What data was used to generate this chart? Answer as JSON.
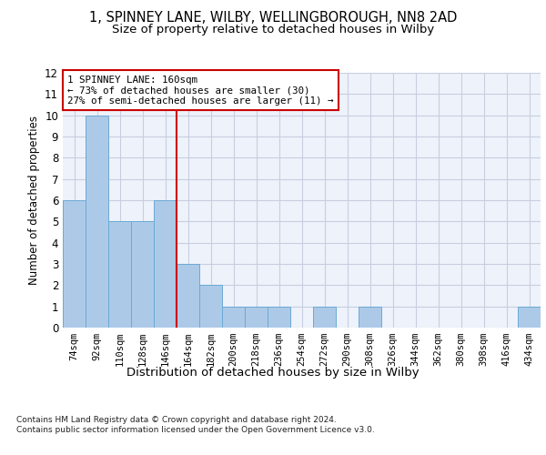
{
  "title_line1": "1, SPINNEY LANE, WILBY, WELLINGBOROUGH, NN8 2AD",
  "title_line2": "Size of property relative to detached houses in Wilby",
  "xlabel": "Distribution of detached houses by size in Wilby",
  "ylabel": "Number of detached properties",
  "categories": [
    "74sqm",
    "92sqm",
    "110sqm",
    "128sqm",
    "146sqm",
    "164sqm",
    "182sqm",
    "200sqm",
    "218sqm",
    "236sqm",
    "254sqm",
    "272sqm",
    "290sqm",
    "308sqm",
    "326sqm",
    "344sqm",
    "362sqm",
    "380sqm",
    "398sqm",
    "416sqm",
    "434sqm"
  ],
  "values": [
    6,
    10,
    5,
    5,
    6,
    3,
    2,
    1,
    1,
    1,
    0,
    1,
    0,
    1,
    0,
    0,
    0,
    0,
    0,
    0,
    1
  ],
  "bar_color": "#adc9e8",
  "bar_edge_color": "#6aaad4",
  "vline_x": 4.5,
  "annotation_text": "1 SPINNEY LANE: 160sqm\n← 73% of detached houses are smaller (30)\n27% of semi-detached houses are larger (11) →",
  "annotation_box_color": "#ffffff",
  "annotation_box_edge": "#cc0000",
  "ylim": [
    0,
    12
  ],
  "yticks": [
    0,
    1,
    2,
    3,
    4,
    5,
    6,
    7,
    8,
    9,
    10,
    11,
    12
  ],
  "background_color": "#eef2fb",
  "grid_color": "#c8cede",
  "footer": "Contains HM Land Registry data © Crown copyright and database right 2024.\nContains public sector information licensed under the Open Government Licence v3.0.",
  "vline_color": "#cc0000",
  "title_fontsize": 10.5,
  "subtitle_fontsize": 9.5,
  "tick_fontsize": 7.5,
  "ylabel_fontsize": 8.5,
  "xlabel_fontsize": 9.5,
  "footer_fontsize": 6.5
}
